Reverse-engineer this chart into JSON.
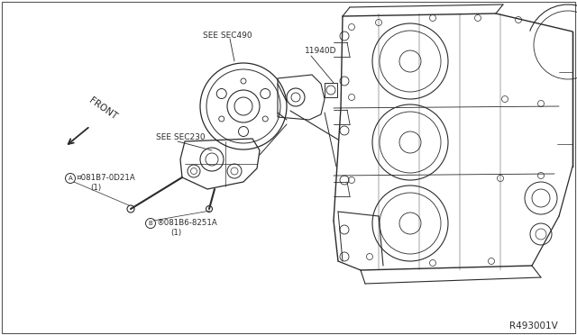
{
  "bg_color": "#ffffff",
  "fig_width": 6.4,
  "fig_height": 3.72,
  "dpi": 100,
  "labels": {
    "front_text": "FRONT",
    "see_sec490": "SEE SEC490",
    "see_sec230": "SEE SEC230",
    "part_11940D": "11940D",
    "part_A_line1": "¤081B7-0D21A",
    "part_A_line2": "(1)",
    "part_B_line1": "®081B6-8251A",
    "part_B_line2": "(1)",
    "diagram_ref": "R493001V"
  },
  "colors": {
    "line": "#2a2a2a",
    "text": "#2a2a2a",
    "bg": "#ffffff"
  }
}
